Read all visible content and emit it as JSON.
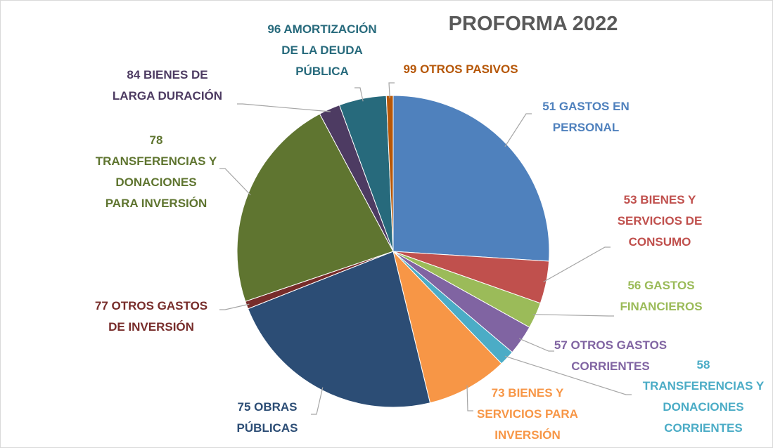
{
  "chart_data": {
    "type": "pie",
    "title": "PROFORMA 2022",
    "categories": [
      "51 GASTOS EN\nPERSONAL",
      "53 BIENES Y\nSERVICIOS DE\nCONSUMO",
      "56 GASTOS\nFINANCIEROS",
      "57 OTROS GASTOS\nCORRIENTES",
      "58\nTRANSFERENCIAS Y\nDONACIONES\nCORRIENTES",
      "73 BIENES Y\nSERVICIOS PARA\nINVERSIÓN",
      "75 OBRAS\nPÚBLICAS",
      "77 OTROS GASTOS\nDE INVERSIÓN",
      "78\nTRANSFERENCIAS Y\nDONACIONES\nPARA INVERSIÓN",
      "84 BIENES DE\nLARGA DURACIÓN",
      "96 AMORTIZACIÓN\nDE LA DEUDA\nPÚBLICA",
      "99 OTROS PASIVOS"
    ],
    "values": [
      26,
      4.4,
      2.7,
      3.1,
      1.6,
      8.4,
      22.8,
      0.8,
      22.4,
      2.2,
      4.9,
      0.7
    ],
    "colors": [
      "#4f81bd",
      "#c0504d",
      "#9bbb59",
      "#8064a2",
      "#4bacc6",
      "#f79646",
      "#2c4d75",
      "#772c2a",
      "#5f7530",
      "#4d3b62",
      "#276a7c",
      "#b65708"
    ]
  }
}
